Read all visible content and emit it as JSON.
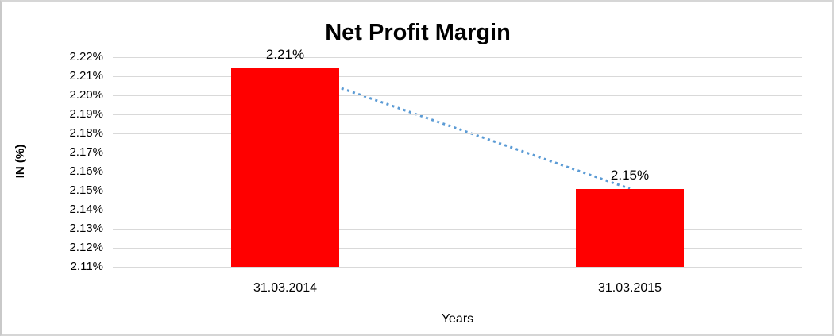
{
  "chart_data": {
    "type": "bar",
    "title": "Net Profit Margin",
    "xlabel": "Years",
    "ylabel": "IN (%)",
    "categories": [
      "31.03.2014",
      "31.03.2015"
    ],
    "values": [
      2.214,
      2.151
    ],
    "point_labels": [
      "2.21%",
      "2.15%"
    ],
    "yticks": [
      "2.22%",
      "2.21%",
      "2.20%",
      "2.19%",
      "2.18%",
      "2.17%",
      "2.16%",
      "2.15%",
      "2.14%",
      "2.13%",
      "2.12%",
      "2.11%"
    ],
    "ytick_values": [
      2.22,
      2.21,
      2.2,
      2.19,
      2.18,
      2.17,
      2.16,
      2.15,
      2.14,
      2.13,
      2.12,
      2.11
    ],
    "ylim": [
      2.11,
      2.22
    ],
    "grid": "horizontal",
    "legend": "none",
    "trendline": {
      "style": "dotted",
      "color": "#5b9bd5",
      "from_value": 2.214,
      "to_value": 2.151
    },
    "colors": {
      "bar": "#ff0000",
      "gridline": "#d9d9d9",
      "text": "#000000",
      "frame_border": "#d6d6d6"
    }
  }
}
